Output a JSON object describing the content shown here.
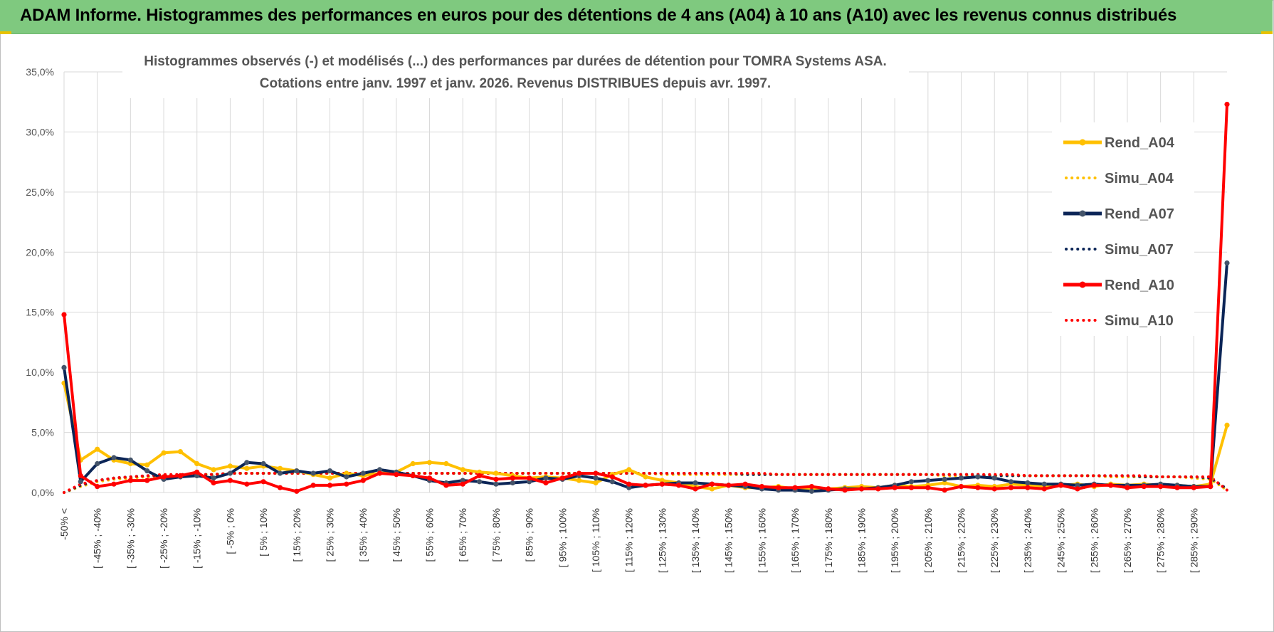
{
  "banner": {
    "title": "ADAM Informe. Histogrammes des performances en euros pour des détentions de 4 ans (A04) à 10 ans (A10) avec les revenus connus distribués"
  },
  "colors": {
    "a04": "#FFC000",
    "a07": "#0B2557",
    "a10": "#FF0000",
    "banner": "#7FC97F"
  },
  "chart_data": {
    "type": "line",
    "title_lines": [
      "Histogrammes observés (-) et modélisés (...) des performances par durées de détention pour TOMRA Systems ASA.",
      "Cotations entre janv. 1997 et janv. 2026. Revenus DISTRIBUES depuis avr. 1997."
    ],
    "y_ticks": [
      "0,0%",
      "5,0%",
      "10,0%",
      "15,0%",
      "20,0%",
      "25,0%",
      "30,0%",
      "35,0%"
    ],
    "ylim": [
      0,
      35
    ],
    "grid": true,
    "legend_position": "right",
    "x_labels": [
      "-50% <",
      "[ -45% ; -40%",
      "[ -35% ; -30%",
      "[ -25% ; -20%",
      "[ -15% ; -10%",
      "[ -5% ; 0%",
      "[ 5% ; 10%",
      "[ 15% ; 20%",
      "[ 25% ; 30%",
      "[ 35% ; 40%",
      "[ 45% ; 50%",
      "[ 55% ; 60%",
      "[ 65% ; 70%",
      "[ 75% ; 80%",
      "[ 85% ; 90%",
      "[ 95% ; 100%",
      "[ 105% ; 110%",
      "[ 115% ; 120%",
      "[ 125% ; 130%",
      "[ 135% ; 140%",
      "[ 145% ; 150%",
      "[ 155% ; 160%",
      "[ 165% ; 170%",
      "[ 175% ; 180%",
      "[ 185% ; 190%",
      "[ 195% ; 200%",
      "[ 205% ; 210%",
      "[ 215% ; 220%",
      "[ 225% ; 230%",
      "[ 235% ; 240%",
      "[ 245% ; 250%",
      "[ 255% ; 260%",
      "[ 265% ; 270%",
      "[ 275% ; 280%",
      "[ 285% ; 290%"
    ],
    "series": [
      {
        "name": "Rend_A04",
        "style": "solid",
        "color": "#FFC000",
        "values": [
          9.1,
          2.7,
          3.6,
          2.7,
          2.4,
          2.3,
          3.3,
          3.4,
          2.4,
          1.9,
          2.2,
          2.0,
          2.2,
          2.0,
          1.8,
          1.5,
          1.2,
          1.6,
          1.4,
          1.6,
          1.7,
          2.4,
          2.5,
          2.4,
          1.9,
          1.7,
          1.6,
          1.4,
          1.2,
          1.3,
          1.2,
          1.0,
          0.8,
          1.5,
          1.9,
          1.3,
          1.0,
          0.8,
          0.5,
          0.3,
          0.6,
          0.4,
          0.4,
          0.5,
          0.3,
          0.3,
          0.3,
          0.4,
          0.5,
          0.4,
          0.6,
          0.5,
          0.6,
          0.8,
          0.5,
          0.6,
          0.5,
          0.7,
          0.6,
          0.5,
          0.6,
          0.7,
          0.5,
          0.7,
          0.6,
          0.7,
          0.6,
          0.6,
          0.5,
          0.7,
          5.6
        ]
      },
      {
        "name": "Simu_A04",
        "style": "dotted",
        "color": "#FFC000",
        "values": [
          0.0,
          0.5,
          0.9,
          1.1,
          1.2,
          1.3,
          1.4,
          1.4,
          1.5,
          1.5,
          1.6,
          1.6,
          1.6,
          1.6,
          1.6,
          1.6,
          1.6,
          1.6,
          1.6,
          1.6,
          1.6,
          1.6,
          1.6,
          1.6,
          1.6,
          1.6,
          1.6,
          1.6,
          1.6,
          1.6,
          1.6,
          1.6,
          1.6,
          1.6,
          1.6,
          1.6,
          1.5,
          1.5,
          1.5,
          1.5,
          1.5,
          1.5,
          1.5,
          1.5,
          1.5,
          1.5,
          1.5,
          1.5,
          1.5,
          1.5,
          1.5,
          1.5,
          1.5,
          1.4,
          1.4,
          1.4,
          1.4,
          1.4,
          1.4,
          1.4,
          1.4,
          1.4,
          1.4,
          1.3,
          1.3,
          1.3,
          1.3,
          1.3,
          1.2,
          1.1,
          0.2
        ]
      },
      {
        "name": "Rend_A07",
        "style": "solid",
        "color": "#0B2557",
        "values": [
          10.4,
          0.9,
          2.4,
          2.9,
          2.7,
          1.8,
          1.1,
          1.3,
          1.4,
          1.2,
          1.6,
          2.5,
          2.4,
          1.6,
          1.8,
          1.6,
          1.8,
          1.3,
          1.6,
          1.9,
          1.7,
          1.4,
          1.0,
          0.8,
          1.0,
          0.9,
          0.7,
          0.8,
          0.9,
          1.2,
          1.1,
          1.4,
          1.2,
          0.9,
          0.4,
          0.6,
          0.7,
          0.8,
          0.8,
          0.7,
          0.6,
          0.5,
          0.3,
          0.2,
          0.2,
          0.1,
          0.2,
          0.3,
          0.3,
          0.4,
          0.6,
          0.9,
          1.0,
          1.1,
          1.2,
          1.3,
          1.2,
          0.9,
          0.8,
          0.7,
          0.7,
          0.6,
          0.7,
          0.6,
          0.6,
          0.6,
          0.7,
          0.6,
          0.5,
          0.5,
          19.1
        ]
      },
      {
        "name": "Simu_A07",
        "style": "dotted",
        "color": "#0B2557",
        "values": [
          0.0,
          0.6,
          1.0,
          1.2,
          1.3,
          1.4,
          1.4,
          1.5,
          1.5,
          1.5,
          1.6,
          1.6,
          1.6,
          1.6,
          1.6,
          1.6,
          1.6,
          1.6,
          1.6,
          1.6,
          1.6,
          1.6,
          1.6,
          1.6,
          1.6,
          1.6,
          1.6,
          1.6,
          1.6,
          1.6,
          1.6,
          1.6,
          1.6,
          1.6,
          1.6,
          1.6,
          1.6,
          1.6,
          1.6,
          1.6,
          1.6,
          1.5,
          1.5,
          1.5,
          1.5,
          1.5,
          1.5,
          1.5,
          1.5,
          1.5,
          1.5,
          1.5,
          1.5,
          1.5,
          1.5,
          1.5,
          1.4,
          1.4,
          1.4,
          1.4,
          1.4,
          1.4,
          1.4,
          1.4,
          1.4,
          1.3,
          1.3,
          1.3,
          1.3,
          1.2,
          0.3
        ]
      },
      {
        "name": "Rend_A10",
        "style": "solid",
        "color": "#FF0000",
        "values": [
          14.8,
          1.4,
          0.5,
          0.7,
          1.0,
          1.0,
          1.3,
          1.4,
          1.7,
          0.8,
          1.0,
          0.7,
          0.9,
          0.4,
          0.1,
          0.6,
          0.6,
          0.7,
          1.0,
          1.6,
          1.5,
          1.4,
          1.2,
          0.6,
          0.7,
          1.4,
          1.1,
          1.2,
          1.2,
          0.8,
          1.2,
          1.6,
          1.6,
          1.3,
          0.7,
          0.6,
          0.7,
          0.6,
          0.3,
          0.7,
          0.6,
          0.7,
          0.5,
          0.4,
          0.4,
          0.5,
          0.3,
          0.2,
          0.3,
          0.3,
          0.4,
          0.4,
          0.4,
          0.2,
          0.5,
          0.4,
          0.3,
          0.4,
          0.4,
          0.3,
          0.6,
          0.3,
          0.6,
          0.6,
          0.4,
          0.5,
          0.5,
          0.4,
          0.4,
          0.5,
          32.3
        ]
      },
      {
        "name": "Simu_A10",
        "style": "dotted",
        "color": "#FF0000",
        "values": [
          0.0,
          0.7,
          1.0,
          1.2,
          1.3,
          1.4,
          1.5,
          1.5,
          1.5,
          1.5,
          1.6,
          1.6,
          1.6,
          1.6,
          1.6,
          1.6,
          1.6,
          1.6,
          1.6,
          1.6,
          1.6,
          1.6,
          1.6,
          1.6,
          1.6,
          1.6,
          1.6,
          1.6,
          1.6,
          1.6,
          1.6,
          1.6,
          1.6,
          1.6,
          1.6,
          1.6,
          1.6,
          1.6,
          1.6,
          1.6,
          1.6,
          1.6,
          1.6,
          1.5,
          1.5,
          1.5,
          1.5,
          1.5,
          1.5,
          1.5,
          1.5,
          1.5,
          1.5,
          1.5,
          1.5,
          1.5,
          1.5,
          1.5,
          1.4,
          1.4,
          1.4,
          1.4,
          1.4,
          1.4,
          1.4,
          1.4,
          1.3,
          1.3,
          1.3,
          1.3,
          0.2
        ]
      }
    ]
  }
}
